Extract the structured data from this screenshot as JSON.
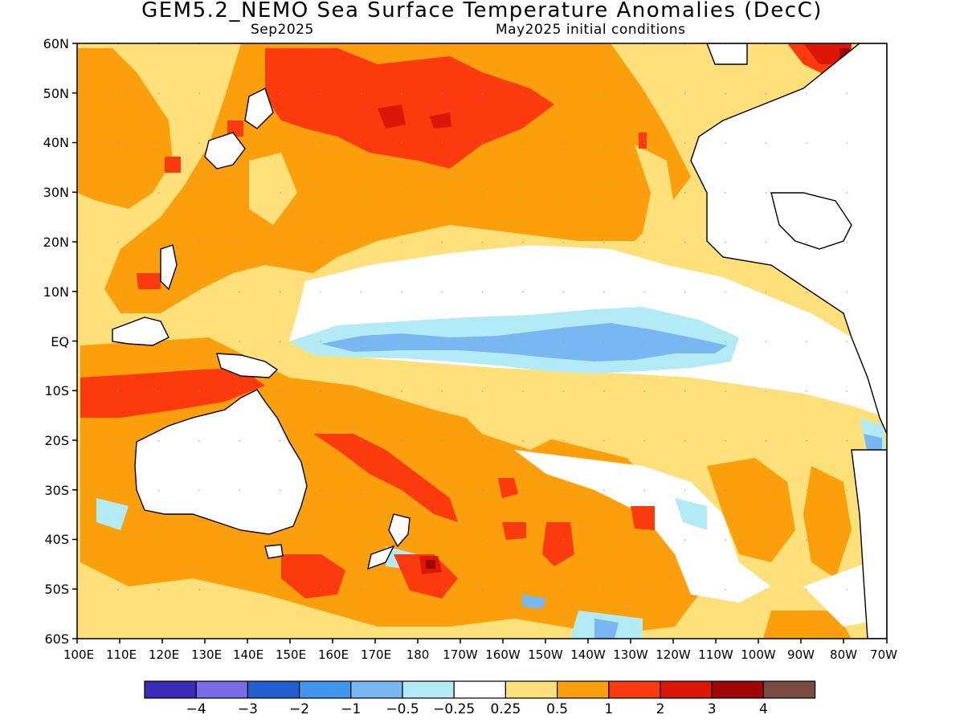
{
  "title": "GEM5.2_NEMO Sea Surface Temperature Anomalies (DecC)",
  "valid_month": "Sep2025",
  "init_note": "May2025 initial conditions",
  "lat_labels": [
    "60N",
    "50N",
    "40N",
    "30N",
    "20N",
    "10N",
    "EQ",
    "10S",
    "20S",
    "30S",
    "40S",
    "50S",
    "60S"
  ],
  "lon_labels": [
    "100E",
    "110E",
    "120E",
    "130E",
    "140E",
    "150E",
    "160E",
    "170E",
    "180",
    "170W",
    "160W",
    "150W",
    "140W",
    "130W",
    "120W",
    "110W",
    "100W",
    "90W",
    "80W",
    "70W"
  ],
  "colorbar": {
    "colors": [
      "#3a2bb8",
      "#7b6be6",
      "#1f5fcf",
      "#3f95ef",
      "#79b7f2",
      "#b2ebf5",
      "#ffffff",
      "#fde07a",
      "#fba00c",
      "#fb3a0e",
      "#dd1706",
      "#a00606",
      "#7a4b40"
    ],
    "labels": [
      "-4",
      "-3",
      "-2",
      "-1",
      "-0.5",
      "-0.25",
      "0.25",
      "0.5",
      "1",
      "2",
      "3",
      "4"
    ]
  }
}
